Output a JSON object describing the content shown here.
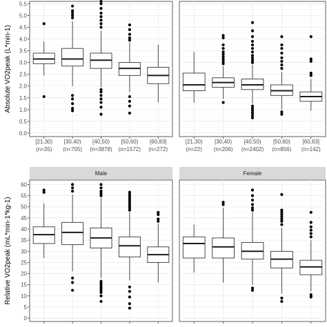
{
  "chart_data": [
    {
      "type": "boxplot",
      "ylabel": "Absolute VO2peak (L*min-1)",
      "ylim": [
        -0.15,
        5.6
      ],
      "yticks": [
        0.0,
        0.5,
        1.0,
        1.5,
        2.0,
        2.5,
        3.0,
        3.5,
        4.0,
        4.5,
        5.0,
        5.5
      ],
      "grid": "on",
      "panels": [
        {
          "strip": "",
          "categories": [
            "[21,30)",
            "[30,40)",
            "[40,50)",
            "[50,60)",
            "[60,83]"
          ],
          "n_labels": [
            "(n=35)",
            "(n=705)",
            "(n=3878)",
            "(n=1572)",
            "(n=272)"
          ],
          "boxes": [
            {
              "lower_whisker": 2.45,
              "q1": 2.95,
              "median": 3.15,
              "q3": 3.4,
              "upper_whisker": 3.9,
              "outliers": [
                1.55,
                4.65
              ]
            },
            {
              "lower_whisker": 2.0,
              "q1": 2.85,
              "median": 3.15,
              "q3": 3.6,
              "upper_whisker": 4.75,
              "outliers": [
                0.95,
                1.05,
                1.25,
                1.45,
                1.6,
                4.9,
                5.0,
                5.1,
                5.2,
                5.4
              ]
            },
            {
              "lower_whisker": 1.95,
              "q1": 2.75,
              "median": 3.1,
              "q3": 3.4,
              "upper_whisker": 4.35,
              "outliers": [
                0.8,
                1.1,
                1.3,
                1.45,
                1.6,
                1.75,
                1.85,
                4.5,
                4.65,
                4.8,
                4.95,
                5.1,
                5.3,
                5.5,
                5.6
              ]
            },
            {
              "lower_whisker": 1.75,
              "q1": 2.45,
              "median": 2.75,
              "q3": 3.0,
              "upper_whisker": 3.85,
              "outliers": [
                0.85,
                1.15,
                1.35,
                1.55,
                3.95,
                4.05,
                4.2,
                4.4,
                4.6
              ]
            },
            {
              "lower_whisker": 1.3,
              "q1": 2.1,
              "median": 2.45,
              "q3": 2.8,
              "upper_whisker": 3.75,
              "outliers": []
            }
          ]
        },
        {
          "strip": "",
          "categories": [
            "[21,30)",
            "[30,40)",
            "[40,50)",
            "[50,60)",
            "[60,83]"
          ],
          "n_labels": [
            "(n=22)",
            "(n=206)",
            "(n=2402)",
            "(n=856)",
            "(n=142)"
          ],
          "boxes": [
            {
              "lower_whisker": 1.3,
              "q1": 1.8,
              "median": 2.05,
              "q3": 2.55,
              "upper_whisker": 3.45,
              "outliers": []
            },
            {
              "lower_whisker": 1.45,
              "q1": 1.95,
              "median": 2.15,
              "q3": 2.35,
              "upper_whisker": 2.85,
              "outliers": [
                1.3,
                2.95,
                3.05,
                3.15,
                3.25,
                3.35,
                3.45,
                3.6,
                3.75,
                4.05,
                4.15
              ]
            },
            {
              "lower_whisker": 1.25,
              "q1": 1.85,
              "median": 2.05,
              "q3": 2.3,
              "upper_whisker": 2.9,
              "outliers": [
                0.65,
                0.75,
                0.85,
                0.95,
                1.05,
                1.15,
                3.0,
                3.1,
                3.2,
                3.3,
                3.45,
                3.6,
                3.75,
                3.9,
                4.1,
                4.35,
                4.7
              ]
            },
            {
              "lower_whisker": 1.0,
              "q1": 1.6,
              "median": 1.8,
              "q3": 2.05,
              "upper_whisker": 2.6,
              "outliers": [
                0.8,
                0.9,
                2.75,
                2.9,
                3.05,
                3.2,
                3.4,
                3.6,
                3.75,
                4.1
              ]
            },
            {
              "lower_whisker": 0.95,
              "q1": 1.35,
              "median": 1.55,
              "q3": 1.75,
              "upper_whisker": 2.3,
              "outliers": [
                2.45,
                2.55,
                3.05,
                3.15,
                4.1
              ]
            }
          ]
        }
      ]
    },
    {
      "type": "boxplot",
      "ylabel": "Relative VO2peak (mL*min-1*kg-1)",
      "ylim": [
        -1.5,
        62
      ],
      "yticks": [
        0,
        5,
        10,
        15,
        20,
        25,
        30,
        35,
        40,
        45,
        50,
        55,
        60
      ],
      "grid": "on",
      "panels": [
        {
          "strip": "Male",
          "categories": [
            "",
            "",
            "",
            "",
            ""
          ],
          "n_labels": [],
          "boxes": [
            {
              "lower_whisker": 27.0,
              "q1": 33.5,
              "median": 37.5,
              "q3": 41.0,
              "upper_whisker": 51.5,
              "outliers": [
                56.5,
                57.5
              ]
            },
            {
              "lower_whisker": 21.0,
              "q1": 33.0,
              "median": 38.5,
              "q3": 43.0,
              "upper_whisker": 55.5,
              "outliers": [
                12.5,
                16.0,
                18.0,
                57.0,
                58.5,
                60.0
              ]
            },
            {
              "lower_whisker": 18.0,
              "q1": 31.5,
              "median": 36.0,
              "q3": 40.5,
              "upper_whisker": 54.0,
              "outliers": [
                7.5,
                10.0,
                11.5,
                12.5,
                13.5,
                14.5,
                15.5,
                16.5,
                55.0,
                56.0,
                57.0,
                58.5,
                60.0
              ]
            },
            {
              "lower_whisker": 17.0,
              "q1": 27.5,
              "median": 32.5,
              "q3": 36.5,
              "upper_whisker": 47.5,
              "outliers": [
                4.5,
                6.5,
                9.5,
                12.0,
                14.0,
                48.5,
                49.5,
                50.5,
                51.5,
                52.5,
                53.5,
                54.5,
                55.5,
                56.5
              ]
            },
            {
              "lower_whisker": 16.0,
              "q1": 25.0,
              "median": 28.5,
              "q3": 32.0,
              "upper_whisker": 42.5,
              "outliers": [
                43.5,
                44.5,
                46.5,
                47.5
              ]
            }
          ]
        },
        {
          "strip": "Female",
          "categories": [
            "",
            "",
            "",
            "",
            ""
          ],
          "n_labels": [],
          "boxes": [
            {
              "lower_whisker": 20.5,
              "q1": 27.0,
              "median": 33.5,
              "q3": 36.5,
              "upper_whisker": 42.0,
              "outliers": []
            },
            {
              "lower_whisker": 16.0,
              "q1": 27.0,
              "median": 32.0,
              "q3": 36.0,
              "upper_whisker": 49.5,
              "outliers": [
                51.0,
                52.0
              ]
            },
            {
              "lower_whisker": 15.0,
              "q1": 26.5,
              "median": 30.0,
              "q3": 34.0,
              "upper_whisker": 47.5,
              "outliers": [
                12.5,
                13.5,
                48.5,
                49.5,
                51.0,
                53.0,
                55.0,
                57.5
              ]
            },
            {
              "lower_whisker": 11.0,
              "q1": 22.5,
              "median": 26.5,
              "q3": 30.0,
              "upper_whisker": 40.5,
              "outliers": [
                7.5,
                9.0,
                42.0,
                43.5,
                44.5,
                45.5,
                46.5,
                47.5,
                48.5,
                55.5
              ]
            },
            {
              "lower_whisker": 12.0,
              "q1": 19.5,
              "median": 23.0,
              "q3": 26.0,
              "upper_whisker": 35.0,
              "outliers": [
                9.5,
                10.5,
                36.5,
                38.0,
                39.5,
                41.0,
                43.0,
                47.5
              ]
            }
          ]
        }
      ]
    }
  ]
}
